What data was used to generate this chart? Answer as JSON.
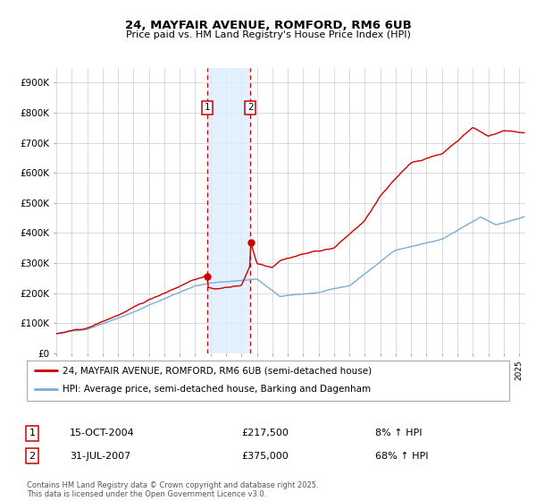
{
  "title": "24, MAYFAIR AVENUE, ROMFORD, RM6 6UB",
  "subtitle": "Price paid vs. HM Land Registry's House Price Index (HPI)",
  "legend_line1": "24, MAYFAIR AVENUE, ROMFORD, RM6 6UB (semi-detached house)",
  "legend_line2": "HPI: Average price, semi-detached house, Barking and Dagenham",
  "annotation1_date": "15-OCT-2004",
  "annotation1_price": "£217,500",
  "annotation1_hpi": "8% ↑ HPI",
  "annotation2_date": "31-JUL-2007",
  "annotation2_price": "£375,000",
  "annotation2_hpi": "68% ↑ HPI",
  "footer": "Contains HM Land Registry data © Crown copyright and database right 2025.\nThis data is licensed under the Open Government Licence v3.0.",
  "price_color": "#cc0000",
  "hpi_color": "#7aadd4",
  "shade_color": "#ddeeff",
  "vline_color": "#cc0000",
  "annotation_box_color": "#cc0000",
  "grid_color": "#cccccc",
  "background_color": "#ffffff",
  "ylim": [
    0,
    950000
  ],
  "yticks": [
    0,
    100000,
    200000,
    300000,
    400000,
    500000,
    600000,
    700000,
    800000,
    900000
  ],
  "ytick_labels": [
    "£0",
    "£100K",
    "£200K",
    "£300K",
    "£400K",
    "£500K",
    "£600K",
    "£700K",
    "£800K",
    "£900K"
  ],
  "sale1_year": 2004.79,
  "sale1_price": 217500,
  "sale2_year": 2007.58,
  "sale2_price": 375000
}
